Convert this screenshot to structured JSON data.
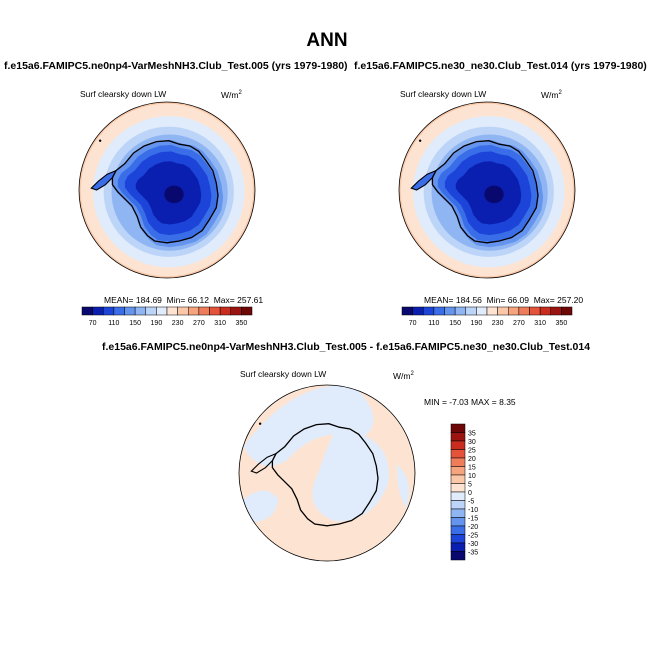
{
  "main_title": "ANN",
  "chart_data": [
    {
      "type": "contour-map",
      "projection": "south-polar-stereographic",
      "title": "f.e15a6.FAMIPC5.ne0np4-VarMeshNH3.Club_Test.005 (yrs 1979-1980)",
      "variable": "Surf clearsky down LW",
      "units_base": "W/m",
      "units_exp": "2",
      "stats": {
        "mean_label": "MEAN=",
        "mean": "184.69",
        "min_label": "Min=",
        "min": "66.12",
        "max_label": "Max=",
        "max": "257.61"
      },
      "colorbar": {
        "levels": [
          "70",
          "110",
          "150",
          "190",
          "230",
          "270",
          "310",
          "350"
        ],
        "colors": [
          "#08086e",
          "#0a1fb0",
          "#1d44d8",
          "#3a6ee8",
          "#6494ee",
          "#8fb5f3",
          "#bcd4f8",
          "#e0ecfb",
          "#fde4d2",
          "#fac8a8",
          "#f6a47e",
          "#f07d5a",
          "#e4533a",
          "#c82d20",
          "#9b1410",
          "#6e0808"
        ]
      }
    },
    {
      "type": "contour-map",
      "projection": "south-polar-stereographic",
      "title": "f.e15a6.FAMIPC5.ne30_ne30.Club_Test.014 (yrs 1979-1980)",
      "variable": "Surf clearsky down LW",
      "units_base": "W/m",
      "units_exp": "2",
      "stats": {
        "mean_label": "MEAN=",
        "mean": "184.56",
        "min_label": "Min=",
        "min": "66.09",
        "max_label": "Max=",
        "max": "257.20"
      },
      "colorbar": {
        "levels": [
          "70",
          "110",
          "150",
          "190",
          "230",
          "270",
          "310",
          "350"
        ],
        "colors": [
          "#08086e",
          "#0a1fb0",
          "#1d44d8",
          "#3a6ee8",
          "#6494ee",
          "#8fb5f3",
          "#bcd4f8",
          "#e0ecfb",
          "#fde4d2",
          "#fac8a8",
          "#f6a47e",
          "#f07d5a",
          "#e4533a",
          "#c82d20",
          "#9b1410",
          "#6e0808"
        ]
      }
    },
    {
      "type": "contour-map",
      "projection": "south-polar-stereographic",
      "title": "f.e15a6.FAMIPC5.ne0np4-VarMeshNH3.Club_Test.005 - f.e15a6.FAMIPC5.ne30_ne30.Club_Test.014",
      "variable": "Surf clearsky down LW",
      "units_base": "W/m",
      "units_exp": "2",
      "stats_text": "MIN = -7.03 MAX =   8.35",
      "colorbar": {
        "levels": [
          "35",
          "30",
          "25",
          "20",
          "15",
          "10",
          "5",
          "0",
          "-5",
          "-10",
          "-15",
          "-20",
          "-25",
          "-30",
          "-35"
        ],
        "colors": [
          "#6e0808",
          "#9b1410",
          "#c82d20",
          "#e4533a",
          "#f07d5a",
          "#f6a47e",
          "#fac8a8",
          "#fde4d2",
          "#e0ecfb",
          "#bcd4f8",
          "#8fb5f3",
          "#6494ee",
          "#3a6ee8",
          "#1d44d8",
          "#0a1fb0",
          "#08086e"
        ]
      }
    }
  ]
}
